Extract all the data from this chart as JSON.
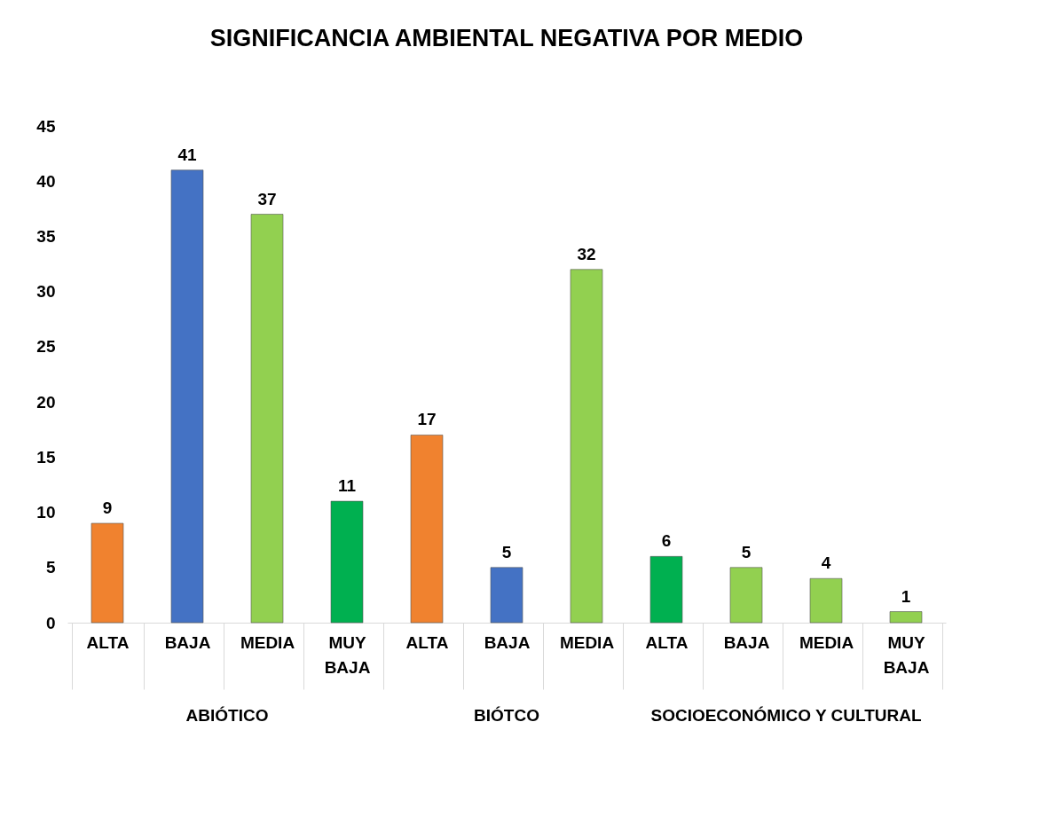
{
  "chart_data": {
    "type": "bar",
    "title": "SIGNIFICANCIA AMBIENTAL NEGATIVA POR MEDIO",
    "categories": [
      "ALTA",
      "BAJA",
      "MEDIA",
      "MUY BAJA",
      "ALTA",
      "BAJA",
      "MEDIA",
      "ALTA",
      "BAJA",
      "MEDIA",
      "MUY BAJA"
    ],
    "series": [
      {
        "colors": [
          "#f0822f",
          "#4472c4",
          "#92d050",
          "#00b050",
          null,
          null,
          null,
          null,
          null,
          null,
          null
        ],
        "values": [
          9,
          41,
          37,
          11,
          null,
          null,
          null,
          null,
          null,
          null,
          null
        ]
      },
      {
        "colors": [
          null,
          null,
          null,
          null,
          "#f0822f",
          "#4472c4",
          "#92d050",
          null,
          null,
          null,
          null
        ],
        "values": [
          null,
          null,
          null,
          null,
          17,
          5,
          32,
          null,
          null,
          null,
          null
        ]
      },
      {
        "colors": [
          null,
          null,
          null,
          null,
          null,
          null,
          null,
          "#00b050",
          "#92d050",
          "#92d050",
          "#92d050"
        ],
        "values": [
          null,
          null,
          null,
          null,
          null,
          null,
          null,
          6,
          5,
          4,
          1
        ]
      }
    ],
    "ylim": [
      0,
      45
    ],
    "yticks": [
      0,
      5,
      10,
      15,
      20,
      25,
      30,
      35,
      40,
      45
    ],
    "annotations": [
      "ABIÓTICO",
      "BIÓTCO",
      "SOCIOECONÓMICO Y CULTURAL"
    ],
    "data_labels": true,
    "grid": false
  }
}
